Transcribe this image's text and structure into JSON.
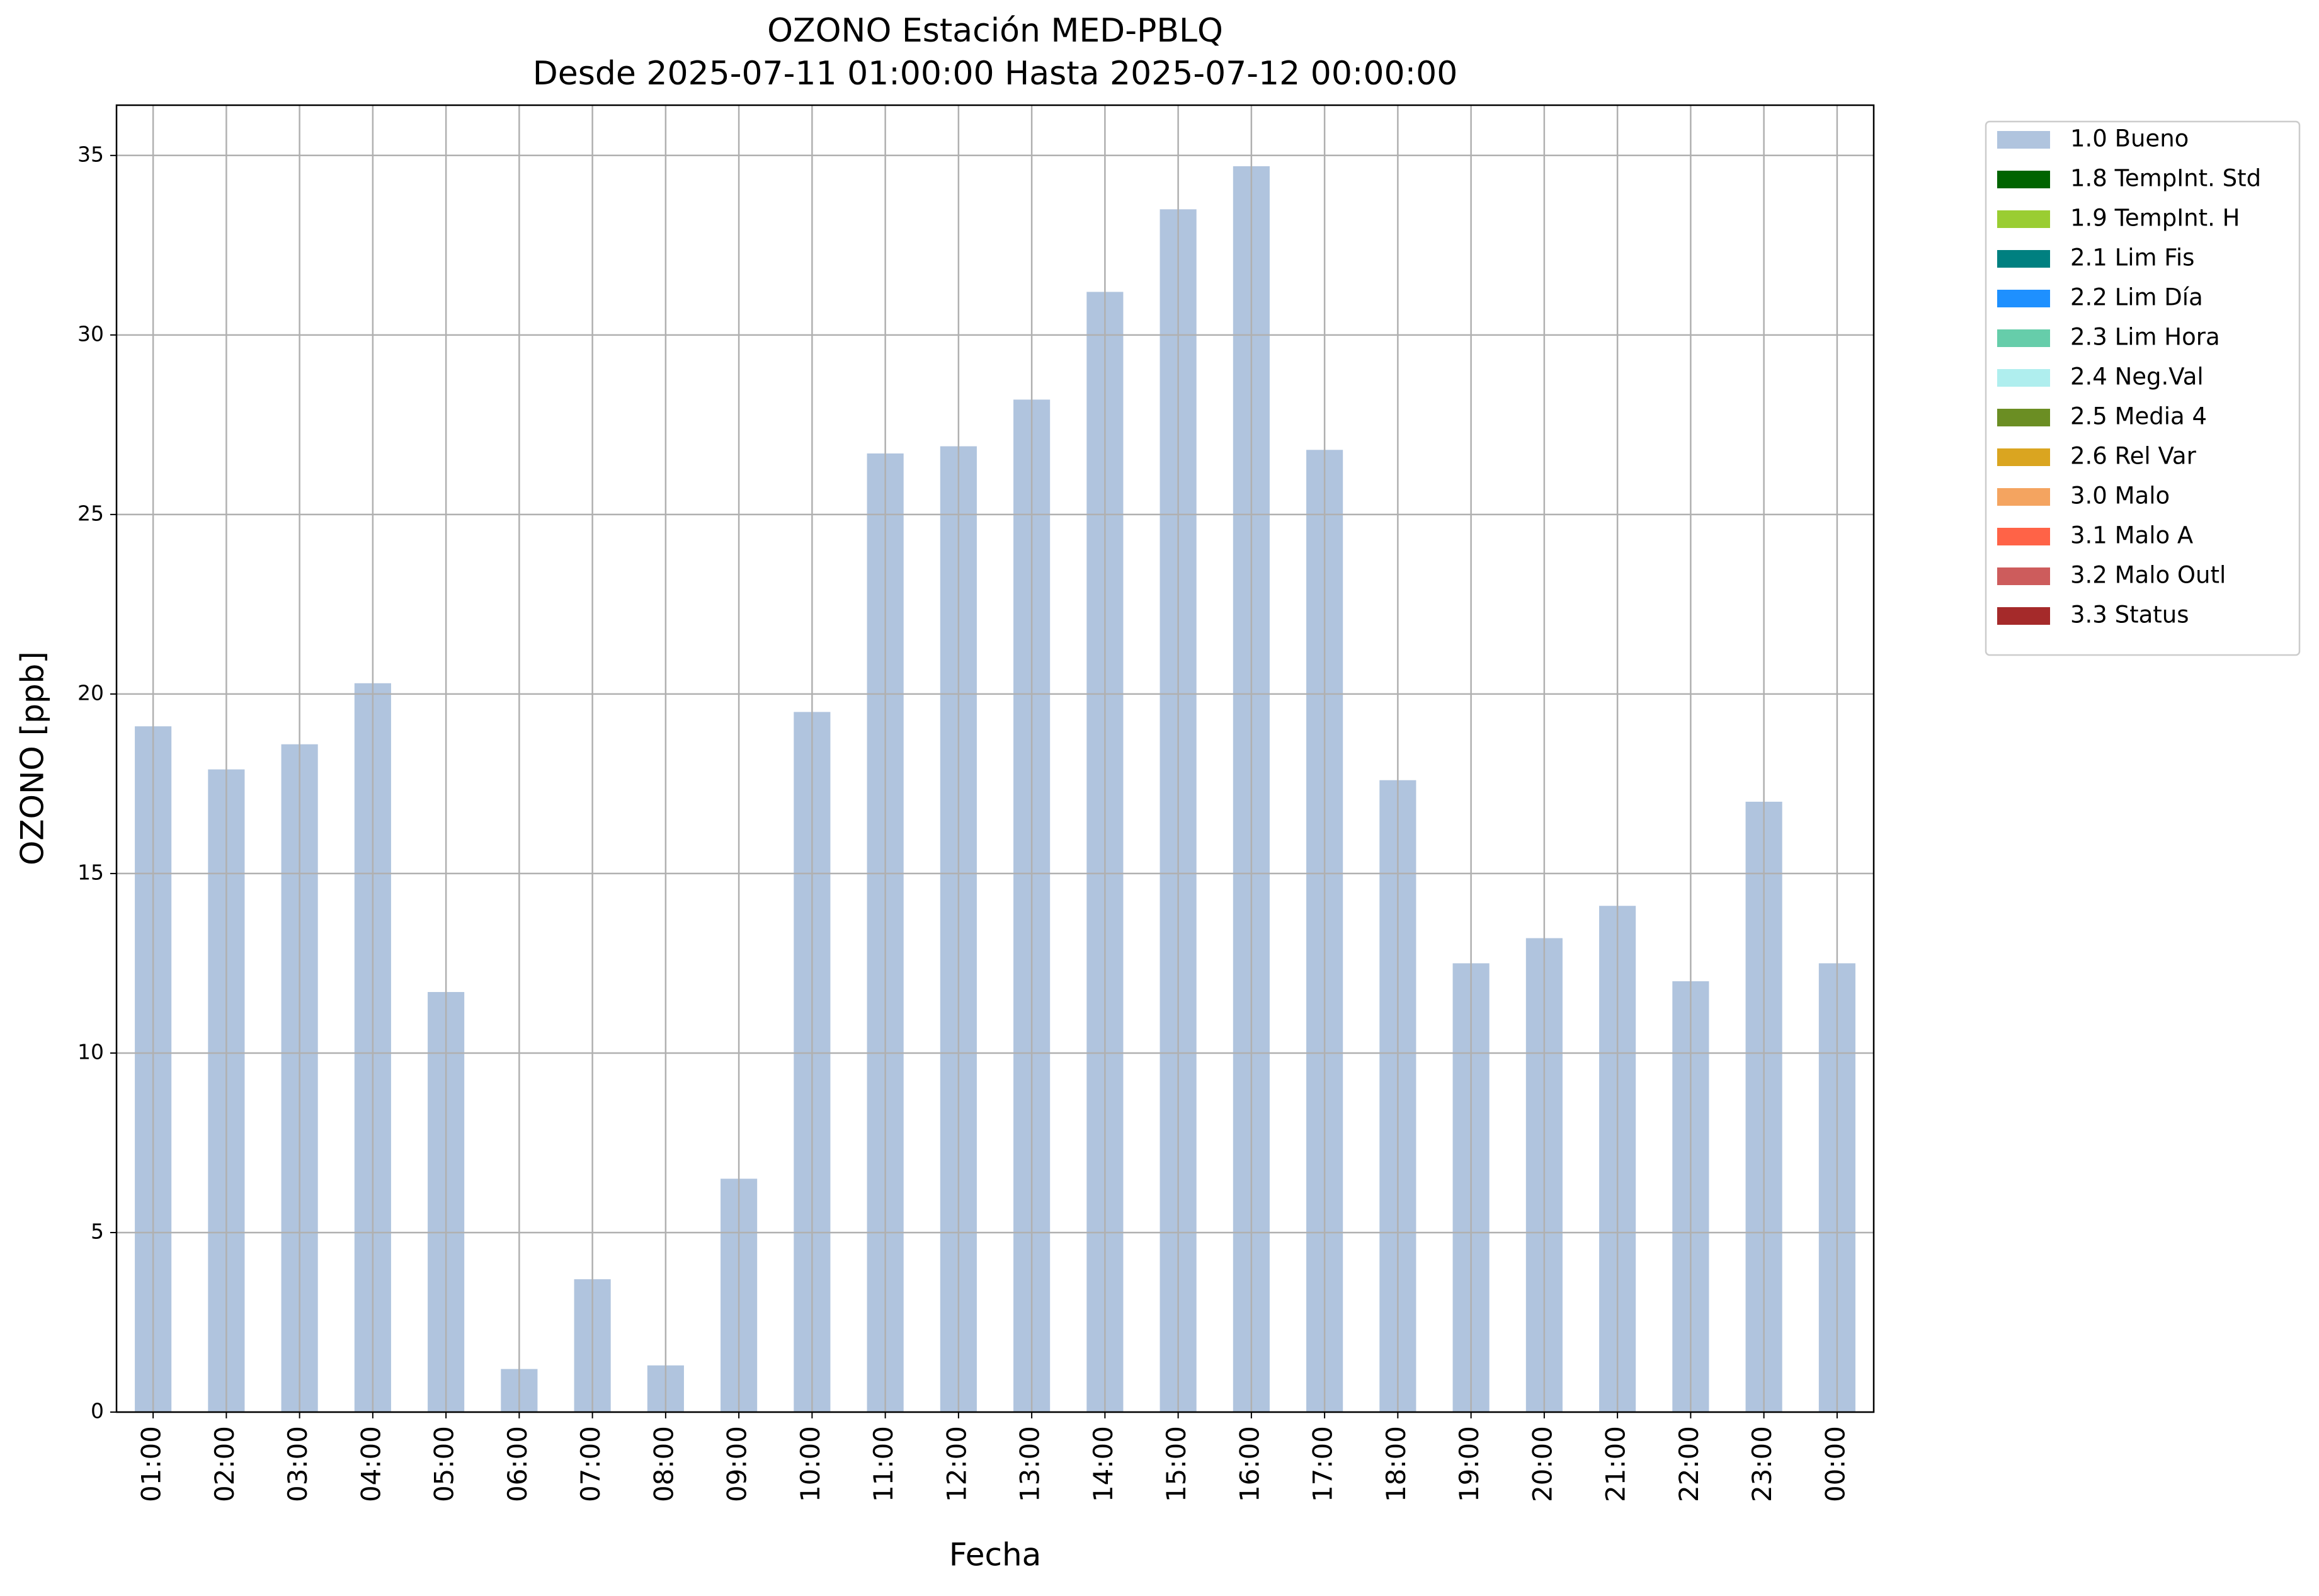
{
  "chart_data": {
    "type": "bar",
    "title": "OZONO Estación MED-PBLQ",
    "subtitle": "Desde 2025-07-11 01:00:00 Hasta 2025-07-12 00:00:00",
    "x_label": "Fecha",
    "y_label": "OZONO [ppb]",
    "categories": [
      "01:00",
      "02:00",
      "03:00",
      "04:00",
      "05:00",
      "06:00",
      "07:00",
      "08:00",
      "09:00",
      "10:00",
      "11:00",
      "12:00",
      "13:00",
      "14:00",
      "15:00",
      "16:00",
      "17:00",
      "18:00",
      "19:00",
      "20:00",
      "21:00",
      "22:00",
      "23:00",
      "00:00"
    ],
    "series": [
      {
        "name": "1.0 Bueno",
        "color": "#b0c4de",
        "values": [
          19.1,
          17.9,
          18.6,
          20.3,
          11.7,
          1.2,
          3.7,
          1.3,
          6.5,
          19.5,
          26.7,
          26.9,
          28.2,
          31.2,
          33.5,
          34.7,
          26.8,
          17.6,
          12.5,
          13.2,
          14.1,
          12.0,
          17.0,
          12.5
        ]
      }
    ],
    "legend_entries": [
      {
        "name": "1.0 Bueno",
        "color": "#b0c4de"
      },
      {
        "name": "1.8 TempInt. Std",
        "color": "#006400"
      },
      {
        "name": "1.9 TempInt. H",
        "color": "#9acd32"
      },
      {
        "name": "2.1 Lim Fis",
        "color": "#008080"
      },
      {
        "name": "2.2 Lim Día",
        "color": "#1e90ff"
      },
      {
        "name": "2.3 Lim Hora",
        "color": "#66cdaa"
      },
      {
        "name": "2.4 Neg.Val",
        "color": "#afeeee"
      },
      {
        "name": "2.5 Media 4",
        "color": "#6b8e23"
      },
      {
        "name": "2.6 Rel Var",
        "color": "#daa520"
      },
      {
        "name": "3.0 Malo",
        "color": "#f4a460"
      },
      {
        "name": "3.1 Malo A",
        "color": "#ff6347"
      },
      {
        "name": "3.2 Malo Outl",
        "color": "#cd5c5c"
      },
      {
        "name": "3.3 Status",
        "color": "#a52a2a"
      }
    ],
    "legend_position": "outside right",
    "ylim": [
      0,
      36.4
    ],
    "yticks": [
      0,
      5,
      10,
      15,
      20,
      25,
      30,
      35
    ],
    "grid": true
  }
}
